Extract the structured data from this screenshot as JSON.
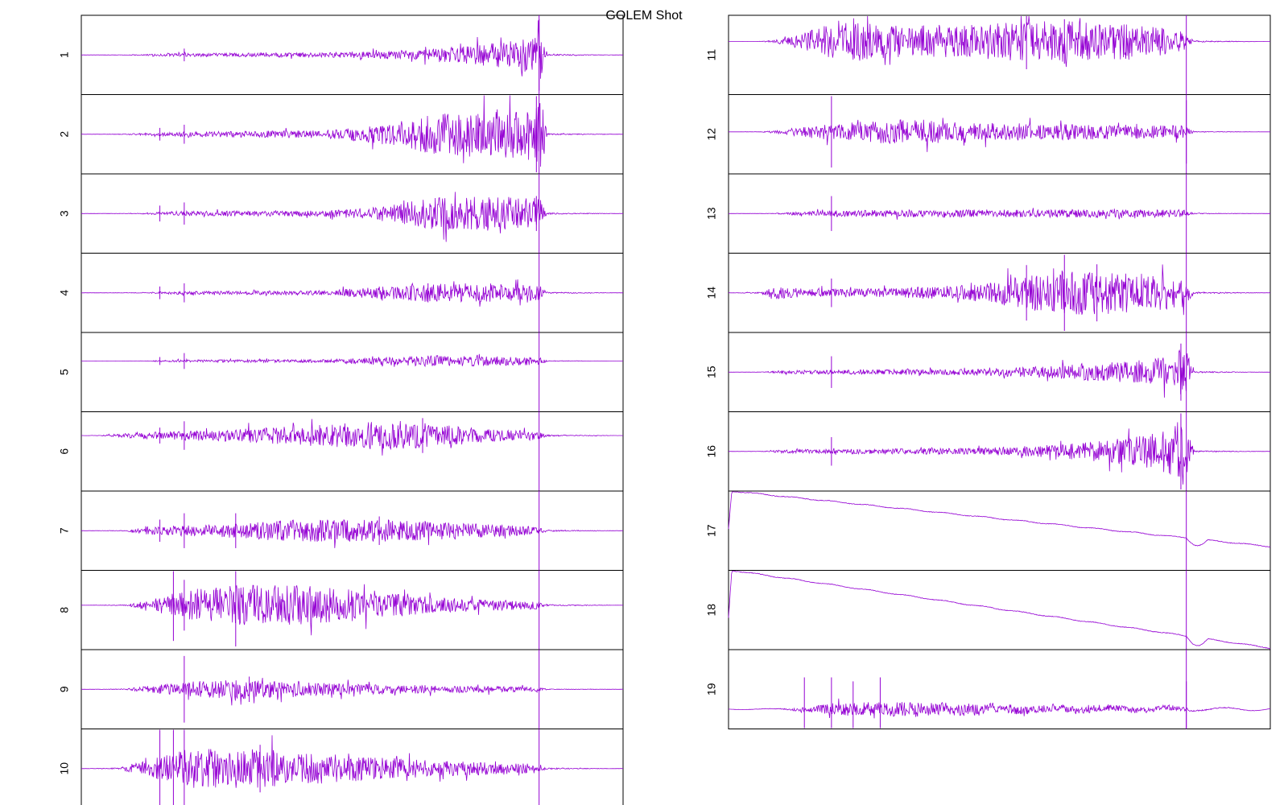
{
  "title": "GOLEM Shot",
  "trace_color": "#9400d3",
  "frame_color": "#000000",
  "chart_data": {
    "type": "line",
    "title": "GOLEM Shot",
    "xlabel": "",
    "ylabel": "",
    "grid": false,
    "legend": "none",
    "description_of_values": "Panels are unlabelled oscilloscope-style traces; no axis ticks or numeric scales are printed. Envelope values are relative amplitude (0-1) along a normalized time axis (0-1).",
    "marker_x": 0.845,
    "panels": [
      {
        "label": "1",
        "column": "left",
        "kind": "noise",
        "baseline": 0.5,
        "env_x": [
          0,
          0.08,
          0.18,
          0.45,
          0.62,
          0.72,
          0.8,
          0.84,
          0.85,
          0.86,
          1.0
        ],
        "env_amp": [
          0,
          0.002,
          0.02,
          0.03,
          0.06,
          0.12,
          0.18,
          0.26,
          0.35,
          0.01,
          0.0
        ],
        "spikes": [
          {
            "x": 0.19,
            "amp": 0.08
          },
          {
            "x": 0.845,
            "amp": 0.45
          }
        ]
      },
      {
        "label": "2",
        "column": "left",
        "kind": "noise",
        "baseline": 0.5,
        "env_x": [
          0,
          0.07,
          0.18,
          0.45,
          0.55,
          0.65,
          0.75,
          0.84,
          0.85,
          0.86,
          1.0
        ],
        "env_amp": [
          0,
          0.003,
          0.03,
          0.05,
          0.12,
          0.25,
          0.3,
          0.35,
          0.45,
          0.01,
          0.0
        ],
        "spikes": [
          {
            "x": 0.145,
            "amp": 0.08
          },
          {
            "x": 0.19,
            "amp": 0.12
          },
          {
            "x": 0.84,
            "amp": 0.48
          }
        ]
      },
      {
        "label": "3",
        "column": "left",
        "kind": "noise",
        "baseline": 0.5,
        "env_x": [
          0,
          0.1,
          0.18,
          0.45,
          0.55,
          0.65,
          0.75,
          0.84,
          0.85,
          0.86,
          1.0
        ],
        "env_amp": [
          0,
          0.003,
          0.03,
          0.04,
          0.08,
          0.2,
          0.22,
          0.2,
          0.16,
          0.01,
          0.0
        ],
        "spikes": [
          {
            "x": 0.145,
            "amp": 0.1
          },
          {
            "x": 0.19,
            "amp": 0.14
          },
          {
            "x": 0.84,
            "amp": 0.22
          }
        ]
      },
      {
        "label": "4",
        "column": "left",
        "kind": "noise",
        "baseline": 0.5,
        "env_x": [
          0,
          0.1,
          0.18,
          0.45,
          0.55,
          0.65,
          0.75,
          0.84,
          0.85,
          0.86,
          1.0
        ],
        "env_amp": [
          0,
          0.003,
          0.02,
          0.03,
          0.08,
          0.12,
          0.12,
          0.1,
          0.08,
          0.01,
          0.0
        ],
        "spikes": [
          {
            "x": 0.145,
            "amp": 0.08
          },
          {
            "x": 0.19,
            "amp": 0.12
          },
          {
            "x": 0.64,
            "amp": 0.12
          }
        ]
      },
      {
        "label": "5",
        "column": "left",
        "kind": "noise",
        "baseline": 0.36,
        "env_x": [
          0,
          0.12,
          0.18,
          0.45,
          0.55,
          0.65,
          0.75,
          0.84,
          0.85,
          0.86,
          1.0
        ],
        "env_amp": [
          0,
          0.002,
          0.015,
          0.02,
          0.05,
          0.07,
          0.06,
          0.05,
          0.04,
          0.005,
          0.0
        ],
        "spikes": [
          {
            "x": 0.145,
            "amp": 0.05
          },
          {
            "x": 0.19,
            "amp": 0.1
          }
        ]
      },
      {
        "label": "6",
        "column": "left",
        "kind": "noise",
        "baseline": 0.3,
        "env_x": [
          0,
          0.04,
          0.1,
          0.25,
          0.4,
          0.55,
          0.65,
          0.75,
          0.84,
          0.86,
          1.0
        ],
        "env_amp": [
          0,
          0.005,
          0.04,
          0.07,
          0.12,
          0.18,
          0.15,
          0.08,
          0.06,
          0.01,
          0.0
        ],
        "spikes": [
          {
            "x": 0.145,
            "amp": 0.1
          },
          {
            "x": 0.19,
            "amp": 0.18
          },
          {
            "x": 0.63,
            "amp": 0.22
          }
        ]
      },
      {
        "label": "7",
        "column": "left",
        "kind": "noise",
        "baseline": 0.5,
        "env_x": [
          0,
          0.08,
          0.12,
          0.25,
          0.4,
          0.55,
          0.65,
          0.75,
          0.84,
          0.86,
          1.0
        ],
        "env_amp": [
          0,
          0.005,
          0.05,
          0.08,
          0.14,
          0.14,
          0.12,
          0.08,
          0.05,
          0.01,
          0.0
        ],
        "spikes": [
          {
            "x": 0.145,
            "amp": 0.14
          },
          {
            "x": 0.19,
            "amp": 0.22
          },
          {
            "x": 0.285,
            "amp": 0.22
          },
          {
            "x": 0.55,
            "amp": 0.18
          }
        ]
      },
      {
        "label": "8",
        "column": "left",
        "kind": "noise",
        "baseline": 0.44,
        "env_x": [
          0,
          0.08,
          0.12,
          0.2,
          0.3,
          0.45,
          0.55,
          0.65,
          0.75,
          0.84,
          0.86,
          1.0
        ],
        "env_amp": [
          0,
          0.005,
          0.06,
          0.2,
          0.26,
          0.24,
          0.16,
          0.1,
          0.07,
          0.05,
          0.01,
          0.0
        ],
        "spikes": [
          {
            "x": 0.17,
            "amp": 0.45
          },
          {
            "x": 0.19,
            "amp": 0.32
          },
          {
            "x": 0.285,
            "amp": 0.52
          }
        ]
      },
      {
        "label": "9",
        "column": "left",
        "kind": "noise",
        "baseline": 0.5,
        "env_x": [
          0,
          0.08,
          0.12,
          0.2,
          0.3,
          0.45,
          0.55,
          0.65,
          0.75,
          0.84,
          0.86,
          1.0
        ],
        "env_amp": [
          0,
          0.005,
          0.04,
          0.1,
          0.12,
          0.08,
          0.06,
          0.05,
          0.04,
          0.03,
          0.005,
          0.0
        ],
        "spikes": [
          {
            "x": 0.19,
            "amp": 0.42
          },
          {
            "x": 0.31,
            "amp": 0.16
          }
        ]
      },
      {
        "label": "10",
        "column": "left",
        "kind": "noise",
        "baseline": 0.5,
        "env_x": [
          0,
          0.07,
          0.12,
          0.2,
          0.35,
          0.5,
          0.65,
          0.75,
          0.84,
          0.86,
          1.0
        ],
        "env_amp": [
          0,
          0.01,
          0.1,
          0.25,
          0.24,
          0.16,
          0.1,
          0.08,
          0.06,
          0.01,
          0.0
        ],
        "spikes": [
          {
            "x": 0.145,
            "amp": 0.5
          },
          {
            "x": 0.17,
            "amp": 0.5
          },
          {
            "x": 0.19,
            "amp": 0.5
          },
          {
            "x": 0.33,
            "amp": 0.3
          }
        ]
      },
      {
        "label": "11",
        "column": "right",
        "kind": "noise",
        "baseline": 0.33,
        "env_x": [
          0,
          0.06,
          0.1,
          0.16,
          0.22,
          0.3,
          0.45,
          0.6,
          0.7,
          0.8,
          0.84,
          0.86,
          1.0
        ],
        "env_amp": [
          0,
          0.002,
          0.03,
          0.16,
          0.3,
          0.2,
          0.22,
          0.26,
          0.24,
          0.18,
          0.12,
          0.01,
          0.0
        ],
        "spikes": [
          {
            "x": 0.55,
            "amp": 0.35
          },
          {
            "x": 0.62,
            "amp": 0.28
          }
        ]
      },
      {
        "label": "12",
        "column": "right",
        "kind": "noise",
        "baseline": 0.47,
        "env_x": [
          0,
          0.06,
          0.1,
          0.15,
          0.3,
          0.45,
          0.6,
          0.75,
          0.84,
          0.86,
          1.0
        ],
        "env_amp": [
          0,
          0.002,
          0.03,
          0.08,
          0.16,
          0.12,
          0.1,
          0.09,
          0.08,
          0.005,
          0.0
        ],
        "spikes": [
          {
            "x": 0.19,
            "amp": 0.45
          },
          {
            "x": 0.845,
            "amp": 0.4
          }
        ]
      },
      {
        "label": "13",
        "column": "right",
        "kind": "noise",
        "baseline": 0.5,
        "env_x": [
          0,
          0.08,
          0.12,
          0.2,
          0.4,
          0.6,
          0.75,
          0.84,
          0.86,
          1.0
        ],
        "env_amp": [
          0,
          0.002,
          0.02,
          0.04,
          0.05,
          0.05,
          0.05,
          0.05,
          0.005,
          0.0
        ],
        "spikes": [
          {
            "x": 0.19,
            "amp": 0.22
          }
        ]
      },
      {
        "label": "14",
        "column": "right",
        "kind": "noise",
        "baseline": 0.5,
        "env_x": [
          0,
          0.06,
          0.08,
          0.15,
          0.3,
          0.45,
          0.55,
          0.65,
          0.75,
          0.84,
          0.86,
          1.0
        ],
        "env_amp": [
          0,
          0.01,
          0.08,
          0.05,
          0.06,
          0.1,
          0.22,
          0.28,
          0.26,
          0.18,
          0.01,
          0.0
        ],
        "spikes": [
          {
            "x": 0.19,
            "amp": 0.18
          },
          {
            "x": 0.55,
            "amp": 0.35
          },
          {
            "x": 0.62,
            "amp": 0.48
          },
          {
            "x": 0.68,
            "amp": 0.36
          }
        ]
      },
      {
        "label": "15",
        "column": "right",
        "kind": "noise",
        "baseline": 0.5,
        "env_x": [
          0,
          0.06,
          0.1,
          0.2,
          0.45,
          0.6,
          0.7,
          0.78,
          0.82,
          0.84,
          0.86,
          1.0
        ],
        "env_amp": [
          0,
          0.002,
          0.02,
          0.03,
          0.04,
          0.08,
          0.12,
          0.16,
          0.22,
          0.34,
          0.01,
          0.0
        ],
        "spikes": [
          {
            "x": 0.19,
            "amp": 0.2
          },
          {
            "x": 0.835,
            "amp": 0.36
          }
        ]
      },
      {
        "label": "16",
        "column": "right",
        "kind": "noise",
        "baseline": 0.5,
        "env_x": [
          0,
          0.06,
          0.1,
          0.2,
          0.45,
          0.6,
          0.7,
          0.78,
          0.82,
          0.84,
          0.86,
          1.0
        ],
        "env_amp": [
          0,
          0.002,
          0.02,
          0.03,
          0.04,
          0.08,
          0.14,
          0.22,
          0.3,
          0.46,
          0.01,
          0.0
        ],
        "spikes": [
          {
            "x": 0.19,
            "amp": 0.18
          },
          {
            "x": 0.835,
            "amp": 0.48
          }
        ]
      },
      {
        "label": "17",
        "column": "right",
        "kind": "drift",
        "start_level": 0.48,
        "peak_level": 0.0,
        "end_level": 0.7,
        "jump_x": 0.845,
        "jump_depth": 0.08
      },
      {
        "label": "18",
        "column": "right",
        "kind": "drift",
        "start_level": 0.6,
        "peak_level": 0.0,
        "end_level": 0.98,
        "jump_x": 0.845,
        "jump_depth": 0.1
      },
      {
        "label": "19",
        "column": "right",
        "kind": "bumpy",
        "baseline": 0.75,
        "env_x": [
          0,
          0.1,
          0.14,
          0.2,
          0.3,
          0.45,
          0.55,
          0.7,
          0.84,
          0.86,
          1.0
        ],
        "env_amp": [
          0,
          0.005,
          0.03,
          0.08,
          0.1,
          0.08,
          0.05,
          0.04,
          0.03,
          0.01,
          0.0
        ],
        "spikes": [
          {
            "x": 0.14,
            "amp": 0.4
          },
          {
            "x": 0.19,
            "amp": 0.4
          },
          {
            "x": 0.23,
            "amp": 0.35
          },
          {
            "x": 0.28,
            "amp": 0.4
          },
          {
            "x": 0.845,
            "amp": 0.35
          }
        ]
      }
    ]
  }
}
